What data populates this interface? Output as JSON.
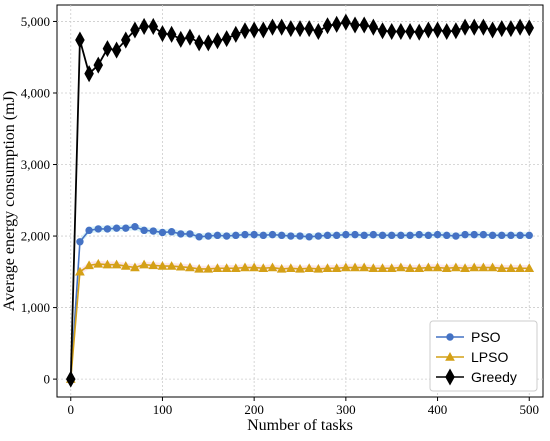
{
  "chart_data": {
    "type": "line",
    "xlabel": "Number of tasks",
    "ylabel": "Average energy consumption (mJ)",
    "xlim": [
      -15,
      515
    ],
    "ylim": [
      -250,
      5230
    ],
    "xticks": [
      0,
      100,
      200,
      300,
      400,
      500
    ],
    "yticks": [
      0,
      1000,
      2000,
      3000,
      4000,
      5000
    ],
    "xtick_labels": [
      "0",
      "100",
      "200",
      "300",
      "400",
      "500"
    ],
    "ytick_labels": [
      "0",
      "1,000",
      "2,000",
      "3,000",
      "4,000",
      "5,000"
    ],
    "grid": true,
    "legend_position": "bottom-right",
    "x": [
      0,
      10,
      20,
      30,
      40,
      50,
      60,
      70,
      80,
      90,
      100,
      110,
      120,
      130,
      140,
      150,
      160,
      170,
      180,
      190,
      200,
      210,
      220,
      230,
      240,
      250,
      260,
      270,
      280,
      290,
      300,
      310,
      320,
      330,
      340,
      350,
      360,
      370,
      380,
      390,
      400,
      410,
      420,
      430,
      440,
      450,
      460,
      470,
      480,
      490,
      500
    ],
    "series": [
      {
        "name": "PSO",
        "color": "#4472c4",
        "marker": "circle",
        "band_color": "#c9eef7",
        "values": [
          0,
          1920,
          2080,
          2100,
          2100,
          2110,
          2110,
          2130,
          2080,
          2070,
          2050,
          2060,
          2030,
          2030,
          1990,
          2000,
          2010,
          2000,
          2010,
          2020,
          2020,
          2010,
          2020,
          2010,
          2000,
          2000,
          1990,
          2000,
          2010,
          2010,
          2020,
          2020,
          2010,
          2020,
          2010,
          2010,
          2010,
          2010,
          2020,
          2010,
          2020,
          2010,
          2000,
          2020,
          2020,
          2020,
          2010,
          2010,
          2010,
          2010,
          2010
        ]
      },
      {
        "name": "LPSO",
        "color": "#d4a017",
        "marker": "triangle",
        "band_color": "#f9dde6",
        "values": [
          0,
          1500,
          1590,
          1610,
          1600,
          1600,
          1580,
          1560,
          1600,
          1590,
          1580,
          1580,
          1570,
          1560,
          1540,
          1540,
          1550,
          1550,
          1550,
          1560,
          1560,
          1550,
          1560,
          1540,
          1550,
          1540,
          1550,
          1540,
          1550,
          1550,
          1560,
          1560,
          1560,
          1550,
          1550,
          1550,
          1560,
          1550,
          1550,
          1560,
          1560,
          1550,
          1560,
          1550,
          1560,
          1560,
          1560,
          1550,
          1550,
          1550,
          1550
        ]
      },
      {
        "name": "Greedy",
        "color": "#000000",
        "marker": "diamond",
        "values": [
          0,
          4740,
          4270,
          4390,
          4620,
          4600,
          4740,
          4880,
          4930,
          4930,
          4830,
          4820,
          4750,
          4780,
          4700,
          4700,
          4730,
          4760,
          4820,
          4870,
          4880,
          4880,
          4920,
          4920,
          4900,
          4900,
          4900,
          4860,
          4940,
          4960,
          4990,
          4950,
          4950,
          4920,
          4870,
          4860,
          4860,
          4860,
          4850,
          4880,
          4880,
          4860,
          4870,
          4920,
          4920,
          4920,
          4880,
          4900,
          4900,
          4920,
          4910
        ]
      }
    ]
  }
}
